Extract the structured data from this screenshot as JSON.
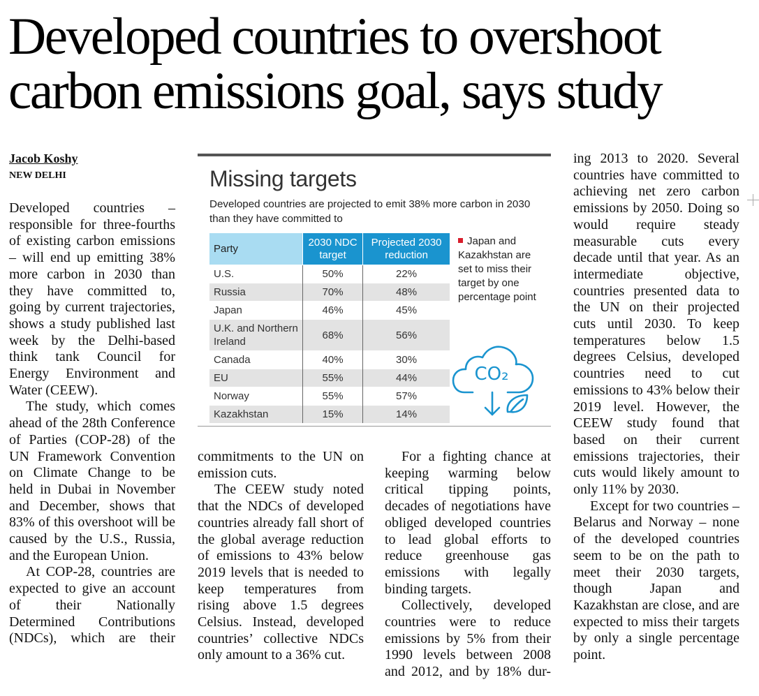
{
  "headline": [
    "Developed countries to overshoot",
    "carbon emissions goal, says study"
  ],
  "byline": "Jacob Koshy",
  "dateline": "NEW DELHI",
  "columns": [
    {
      "paragraphs": [
        "Developed countries – responsible for three-fourths of existing carbon emissions – will end up emitting 38% more carbon in 2030 than they have committed to, going by current trajectories, shows a study published last week by the Delhi-based think tank Council for Energy Environment and Water (CEEW).",
        "The study, which comes ahead of the 28th Conference of Parties (COP-28) of the UN Framework Convention on Climate Change to be held in Dubai in November and December, shows that 83% of this overshoot will be caused by the U.S., Russia, and the European Union.",
        "At COP-28, countries are expected to give an account of their Nationally Determined Contributions (NDCs), which are their"
      ]
    },
    {
      "paragraphs": [
        "commitments to the UN on emission cuts.",
        "The CEEW study noted that the NDCs of developed countries already fall short of the global average reduction of emissions to 43% below 2019 levels that is needed to keep temperatures from rising above 1.5 degrees Celsius. Instead, developed countries’ collective NDCs only amount to a 36% cut."
      ]
    },
    {
      "paragraphs": [
        "For a fighting chance at keeping warming below critical tipping points, decades of negotiations have obliged developed countries to lead global efforts to reduce greenhouse gas emissions with legally binding targets.",
        "Collectively, developed countries were to reduce emissions by 5% from their 1990 levels between 2008 and 2012, and by 18% dur-"
      ]
    },
    {
      "paragraphs": [
        "ing 2013 to 2020. Several countries have committed to achieving net zero carbon emissions by 2050. Doing so would require steady measurable cuts every decade until that year. As an intermediate objective, countries presented data to the UN on their projected cuts until 2030. To keep temperatures below 1.5 degrees Celsius, developed countries need to cut emissions to 43% below their 2019 level. However, the CEEW study found that based on their current emissions trajectories, their cuts would likely amount to only 11% by 2030.",
        "Except for two countries – Belarus and Norway – none of the developed countries seem to be on the path to meet their 2030 targets, though Japan and Kazakhstan are close, and are expected to miss their targets by only a single percentage point."
      ]
    }
  ],
  "graphic": {
    "title": "Missing targets",
    "subtitle": "Developed countries are projected to emit 38% more carbon in 2030 than they have committed to",
    "table": {
      "header": [
        "Party",
        "2030 NDC target",
        "Projected 2030 reduction"
      ],
      "rows": [
        [
          "U.S.",
          "50%",
          "22%"
        ],
        [
          "Russia",
          "70%",
          "48%"
        ],
        [
          "Japan",
          "46%",
          "45%"
        ],
        [
          "U.K. and Northern Ireland",
          "68%",
          "56%"
        ],
        [
          "Canada",
          "40%",
          "30%"
        ],
        [
          "EU",
          "55%",
          "44%"
        ],
        [
          "Norway",
          "55%",
          "57%"
        ],
        [
          "Kazakhstan",
          "15%",
          "14%"
        ]
      ]
    },
    "note": "Japan and Kazakhstan are set to miss their target by one percentage point",
    "icon_label": "CO₂"
  }
}
